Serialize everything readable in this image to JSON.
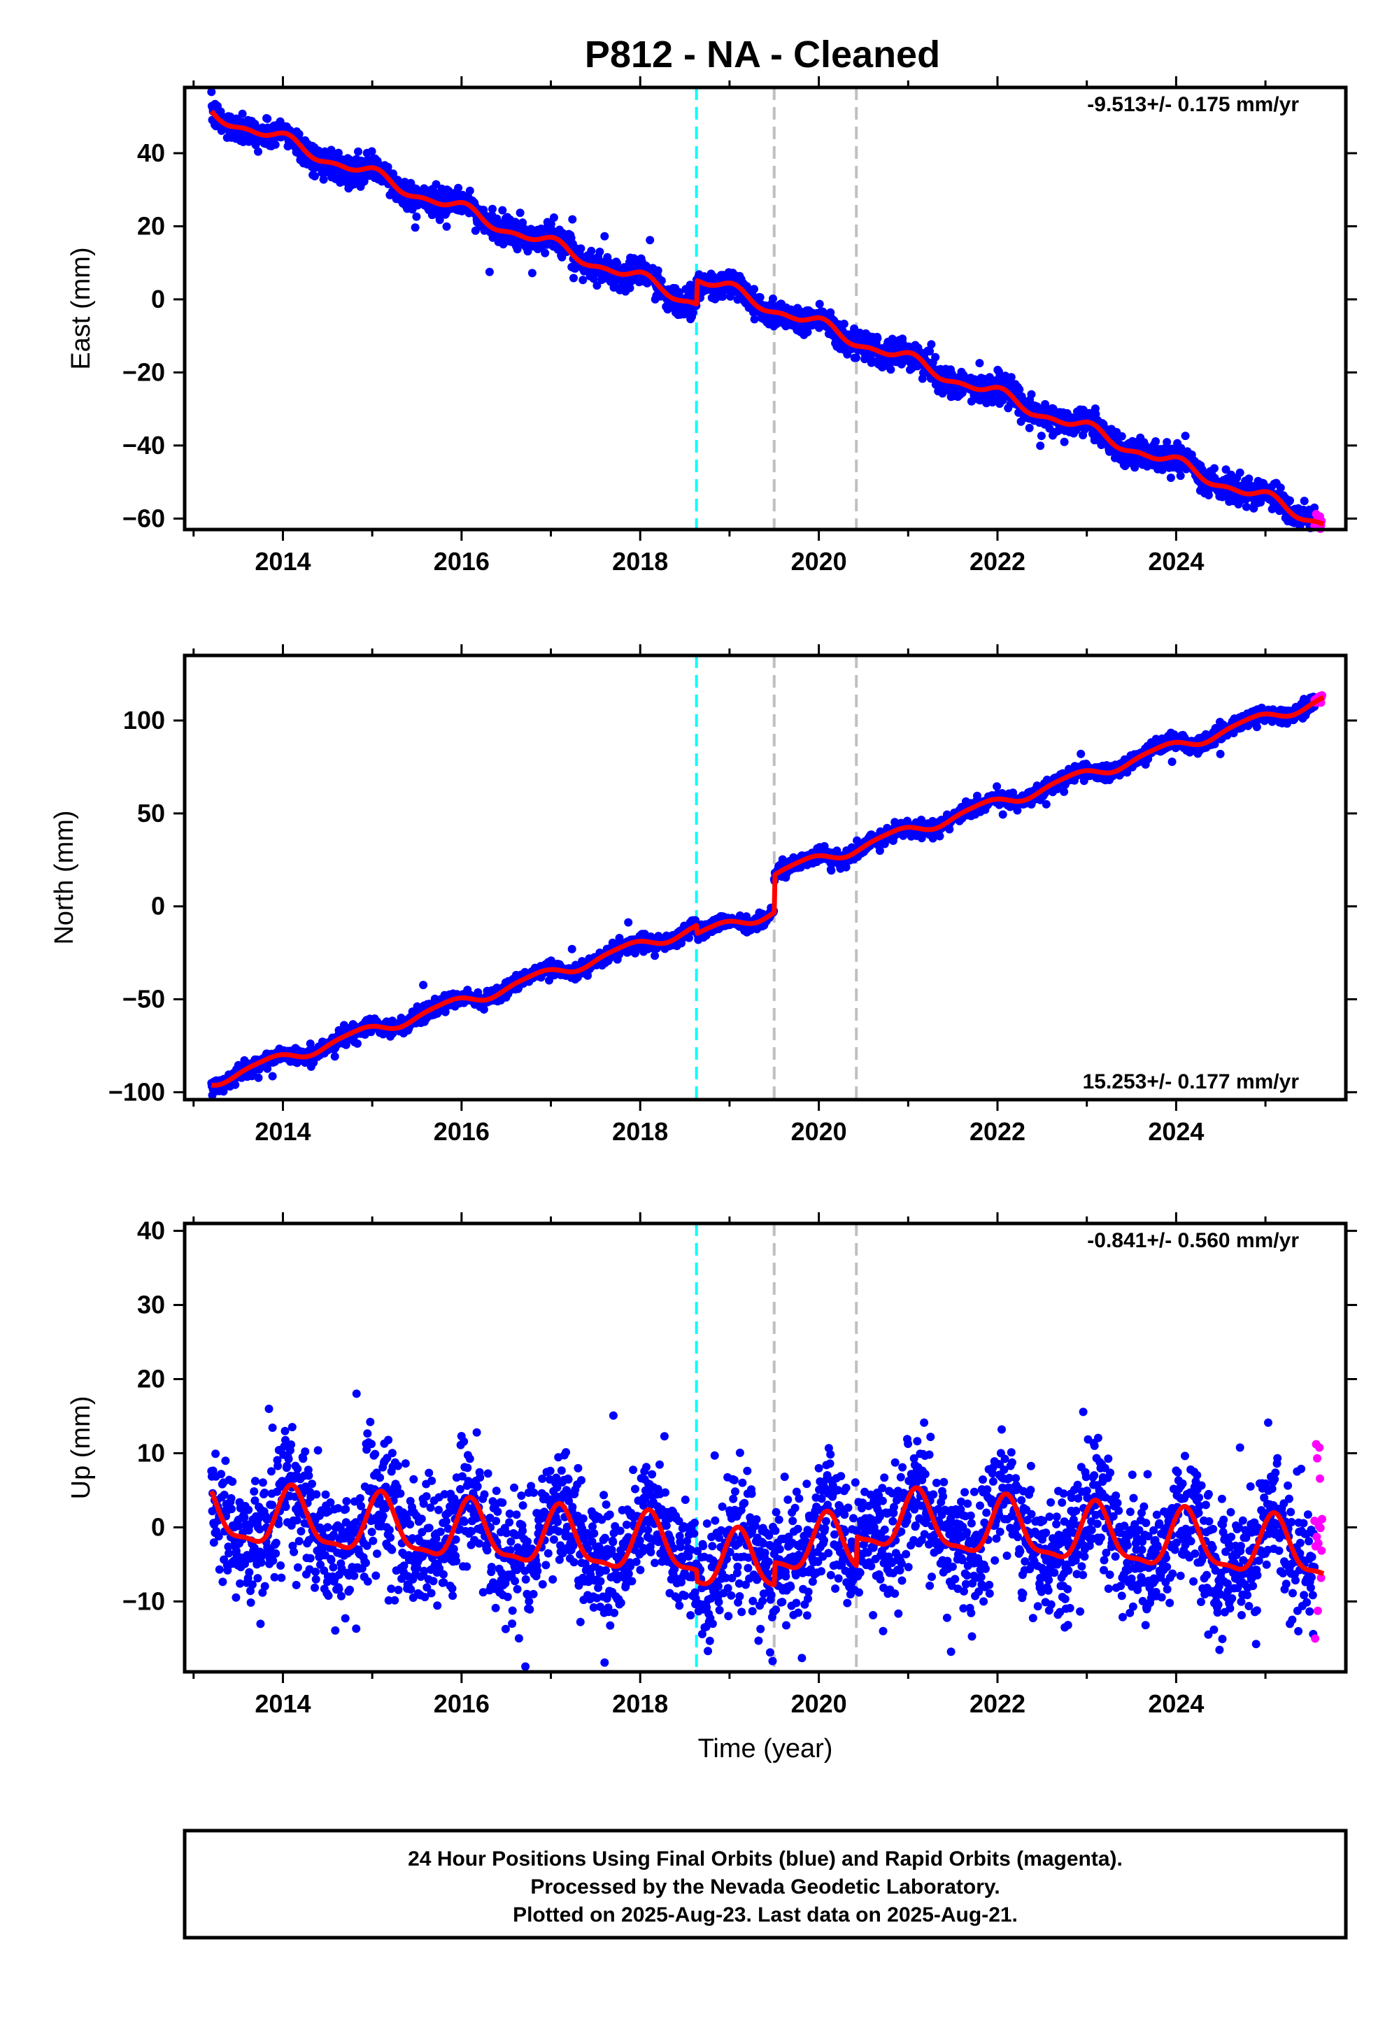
{
  "title": "P812  - NA - Cleaned",
  "footer": {
    "line1": "24 Hour Positions Using Final Orbits (blue) and Rapid Orbits (magenta).",
    "line2": "Processed by the Nevada Geodetic Laboratory.",
    "line3": "Plotted on 2025-Aug-23. Last data on 2025-Aug-21."
  },
  "colors": {
    "final_orbits": "#0000ff",
    "rapid_orbits": "#ff00ff",
    "model": "#ff0000",
    "equipment_change": "#00ffff",
    "event": "#c0c0c0"
  },
  "chart_data": [
    {
      "type": "scatter",
      "id": "east",
      "ylabel": "East (mm)",
      "xlabel": "",
      "xlim": [
        2012.9,
        2025.9
      ],
      "ylim": [
        -63,
        58
      ],
      "xticks": [
        2014,
        2016,
        2018,
        2020,
        2022,
        2024
      ],
      "yticks": [
        -60,
        -40,
        -20,
        0,
        20,
        40
      ],
      "rate_text": "-9.513+/- 0.175 mm/yr",
      "rate_position": "top-right",
      "model": {
        "start": 2013.2,
        "end": 2025.65,
        "intercept_at_start": 51,
        "slope": -9.513,
        "annual_amp": 1.6,
        "annual_phase": 1.5,
        "semiannual_amp": 0.8,
        "offsets": [
          {
            "epoch": 2018.63,
            "jump": 6.5
          }
        ]
      },
      "scatter_sigma": 1.9,
      "rapid_range": [
        2025.55,
        2025.64
      ],
      "vlines": [
        {
          "x": 2018.63,
          "kind": "equipment_change"
        },
        {
          "x": 2019.5,
          "kind": "event"
        },
        {
          "x": 2020.42,
          "kind": "event"
        }
      ]
    },
    {
      "type": "scatter",
      "id": "north",
      "ylabel": "North (mm)",
      "xlabel": "",
      "xlim": [
        2012.9,
        2025.9
      ],
      "ylim": [
        -104,
        135
      ],
      "xticks": [
        2014,
        2016,
        2018,
        2020,
        2022,
        2024
      ],
      "yticks": [
        -100,
        -50,
        0,
        50,
        100
      ],
      "rate_text": "15.253+/- 0.177 mm/yr",
      "rate_position": "bottom-right",
      "model": {
        "start": 2013.2,
        "end": 2025.65,
        "intercept_at_start": -94,
        "slope": 15.253,
        "annual_amp": 2.8,
        "annual_phase": 2.6,
        "semiannual_amp": 0.6,
        "offsets": [
          {
            "epoch": 2018.63,
            "jump": -4.5
          },
          {
            "epoch": 2019.5,
            "jump": 20
          }
        ]
      },
      "scatter_sigma": 2.0,
      "rapid_range": [
        2025.55,
        2025.64
      ],
      "vlines": [
        {
          "x": 2018.63,
          "kind": "equipment_change"
        },
        {
          "x": 2019.5,
          "kind": "event"
        },
        {
          "x": 2020.42,
          "kind": "event"
        }
      ]
    },
    {
      "type": "scatter",
      "id": "up",
      "ylabel": "Up (mm)",
      "xlabel": "Time (year)",
      "xlim": [
        2012.9,
        2025.9
      ],
      "ylim": [
        -19.5,
        41
      ],
      "xticks": [
        2014,
        2016,
        2018,
        2020,
        2022,
        2024
      ],
      "yticks": [
        -10,
        0,
        10,
        20,
        30,
        40
      ],
      "rate_text": "-0.841+/- 0.560 mm/yr",
      "rate_position": "top-right",
      "model": {
        "start": 2013.2,
        "end": 2025.65,
        "intercept_at_start": 1.5,
        "slope": -0.841,
        "annual_amp": 3.8,
        "annual_phase": 0.9,
        "semiannual_amp": 1.2,
        "offsets": [
          {
            "epoch": 2018.63,
            "jump": -1.5
          },
          {
            "epoch": 2019.5,
            "jump": 3
          },
          {
            "epoch": 2020.42,
            "jump": 4
          }
        ]
      },
      "scatter_sigma": 4.2,
      "rapid_range": [
        2025.55,
        2025.64
      ],
      "vlines": [
        {
          "x": 2018.63,
          "kind": "equipment_change"
        },
        {
          "x": 2019.5,
          "kind": "event"
        },
        {
          "x": 2020.42,
          "kind": "event"
        }
      ]
    }
  ]
}
